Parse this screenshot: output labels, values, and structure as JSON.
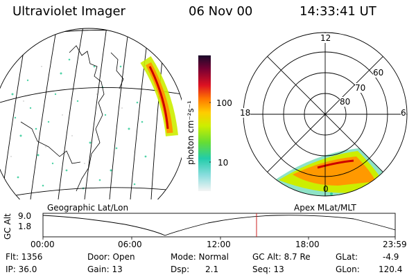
{
  "header": {
    "instrument": "Ultraviolet Imager",
    "date": "06 Nov 00",
    "time": "14:33:41 UT"
  },
  "colorbar": {
    "unit_label": "photon cm⁻²s⁻¹",
    "ticks": [
      "100",
      "10"
    ]
  },
  "polar_plot": {
    "mlt_labels": {
      "top": "12",
      "left": "18",
      "right": "6",
      "bottom": "0"
    },
    "lat_labels": [
      "60",
      "70",
      "80"
    ]
  },
  "map_labels": {
    "left": "Geographic Lat/Lon",
    "right": "Apex MLat/MLT"
  },
  "altitude_plot": {
    "axis_label": "GC Alt",
    "y_ticks": [
      "9.0",
      "1.8"
    ],
    "x_ticks": [
      "00:00",
      "06:00",
      "12:00",
      "18:00",
      "23:59"
    ],
    "current_time_marker": "14:33"
  },
  "info": {
    "flt": "Flt: 1356",
    "ip": "IP: 36.0",
    "door": "Door: Open",
    "gain": "Gain: 13",
    "mode": "Mode: Normal",
    "dsp_label": "Dsp:",
    "dsp_value": "2.1",
    "gc_alt": "GC Alt: 8.7 Re",
    "seq": "Seq: 13",
    "glat_label": "GLat:",
    "glat_value": "-4.9",
    "glon_label": "GLon:",
    "glon_value": "120.4"
  },
  "colors": {
    "aurora_core": "#cc0000",
    "aurora_mid": "#ff9900",
    "aurora_outer": "#ccee00",
    "diffuse": "#33cc99",
    "marker": "#cc2222"
  }
}
